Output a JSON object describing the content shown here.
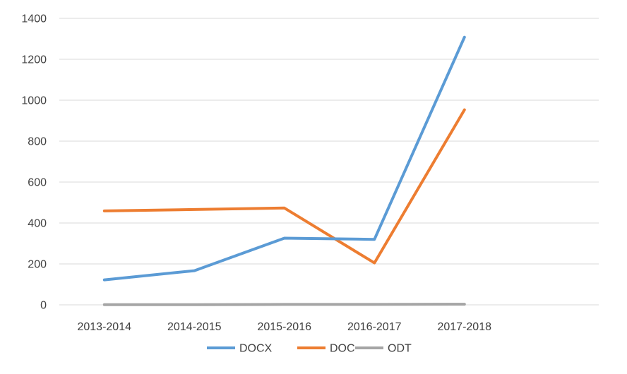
{
  "chart_data": {
    "type": "line",
    "categories": [
      "2013-2014",
      "2014-2015",
      "2015-2016",
      "2016-2017",
      "2017-2018"
    ],
    "series": [
      {
        "name": "DOCX",
        "color": "#5b9bd5",
        "values": [
          122,
          167,
          326,
          320,
          1308
        ]
      },
      {
        "name": "DOC",
        "color": "#ed7d31",
        "values": [
          459,
          466,
          473,
          205,
          953
        ]
      },
      {
        "name": "ODT",
        "color": "#a5a5a5",
        "values": [
          1,
          1,
          2,
          2,
          3
        ]
      }
    ],
    "y_ticks": [
      "0",
      "200",
      "400",
      "600",
      "800",
      "1000",
      "1200",
      "1400"
    ],
    "ylim": [
      0,
      1400
    ],
    "grid": true,
    "legend_position": "bottom"
  }
}
